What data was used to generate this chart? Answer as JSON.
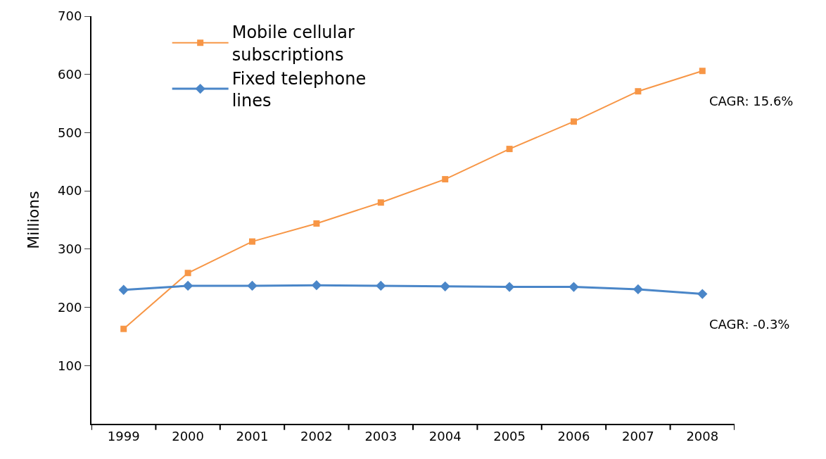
{
  "chart_data": {
    "type": "line",
    "ylabel": "Millions",
    "categories": [
      "1999",
      "2000",
      "2001",
      "2002",
      "2003",
      "2004",
      "2005",
      "2006",
      "2007",
      "2008"
    ],
    "series": [
      {
        "name": "Mobile cellular subscriptions",
        "color": "#f79646",
        "marker": "square",
        "values": [
          163,
          259,
          313,
          344,
          380,
          420,
          472,
          519,
          571,
          606
        ]
      },
      {
        "name": "Fixed telephone lines",
        "color": "#4a86c8",
        "marker": "diamond",
        "values": [
          230,
          237,
          237,
          238,
          237,
          236,
          235,
          235,
          231,
          223
        ]
      }
    ],
    "ylim": [
      0,
      700
    ],
    "yticks": [
      100,
      200,
      300,
      400,
      500,
      600,
      700
    ],
    "legend": "top left",
    "line_style": "solid",
    "annotations": [
      {
        "text": "CAGR: 15.6%",
        "x": "2008",
        "y": 606
      },
      {
        "text": "CAGR: -0.3%",
        "x": "2008",
        "y": 223
      }
    ]
  }
}
